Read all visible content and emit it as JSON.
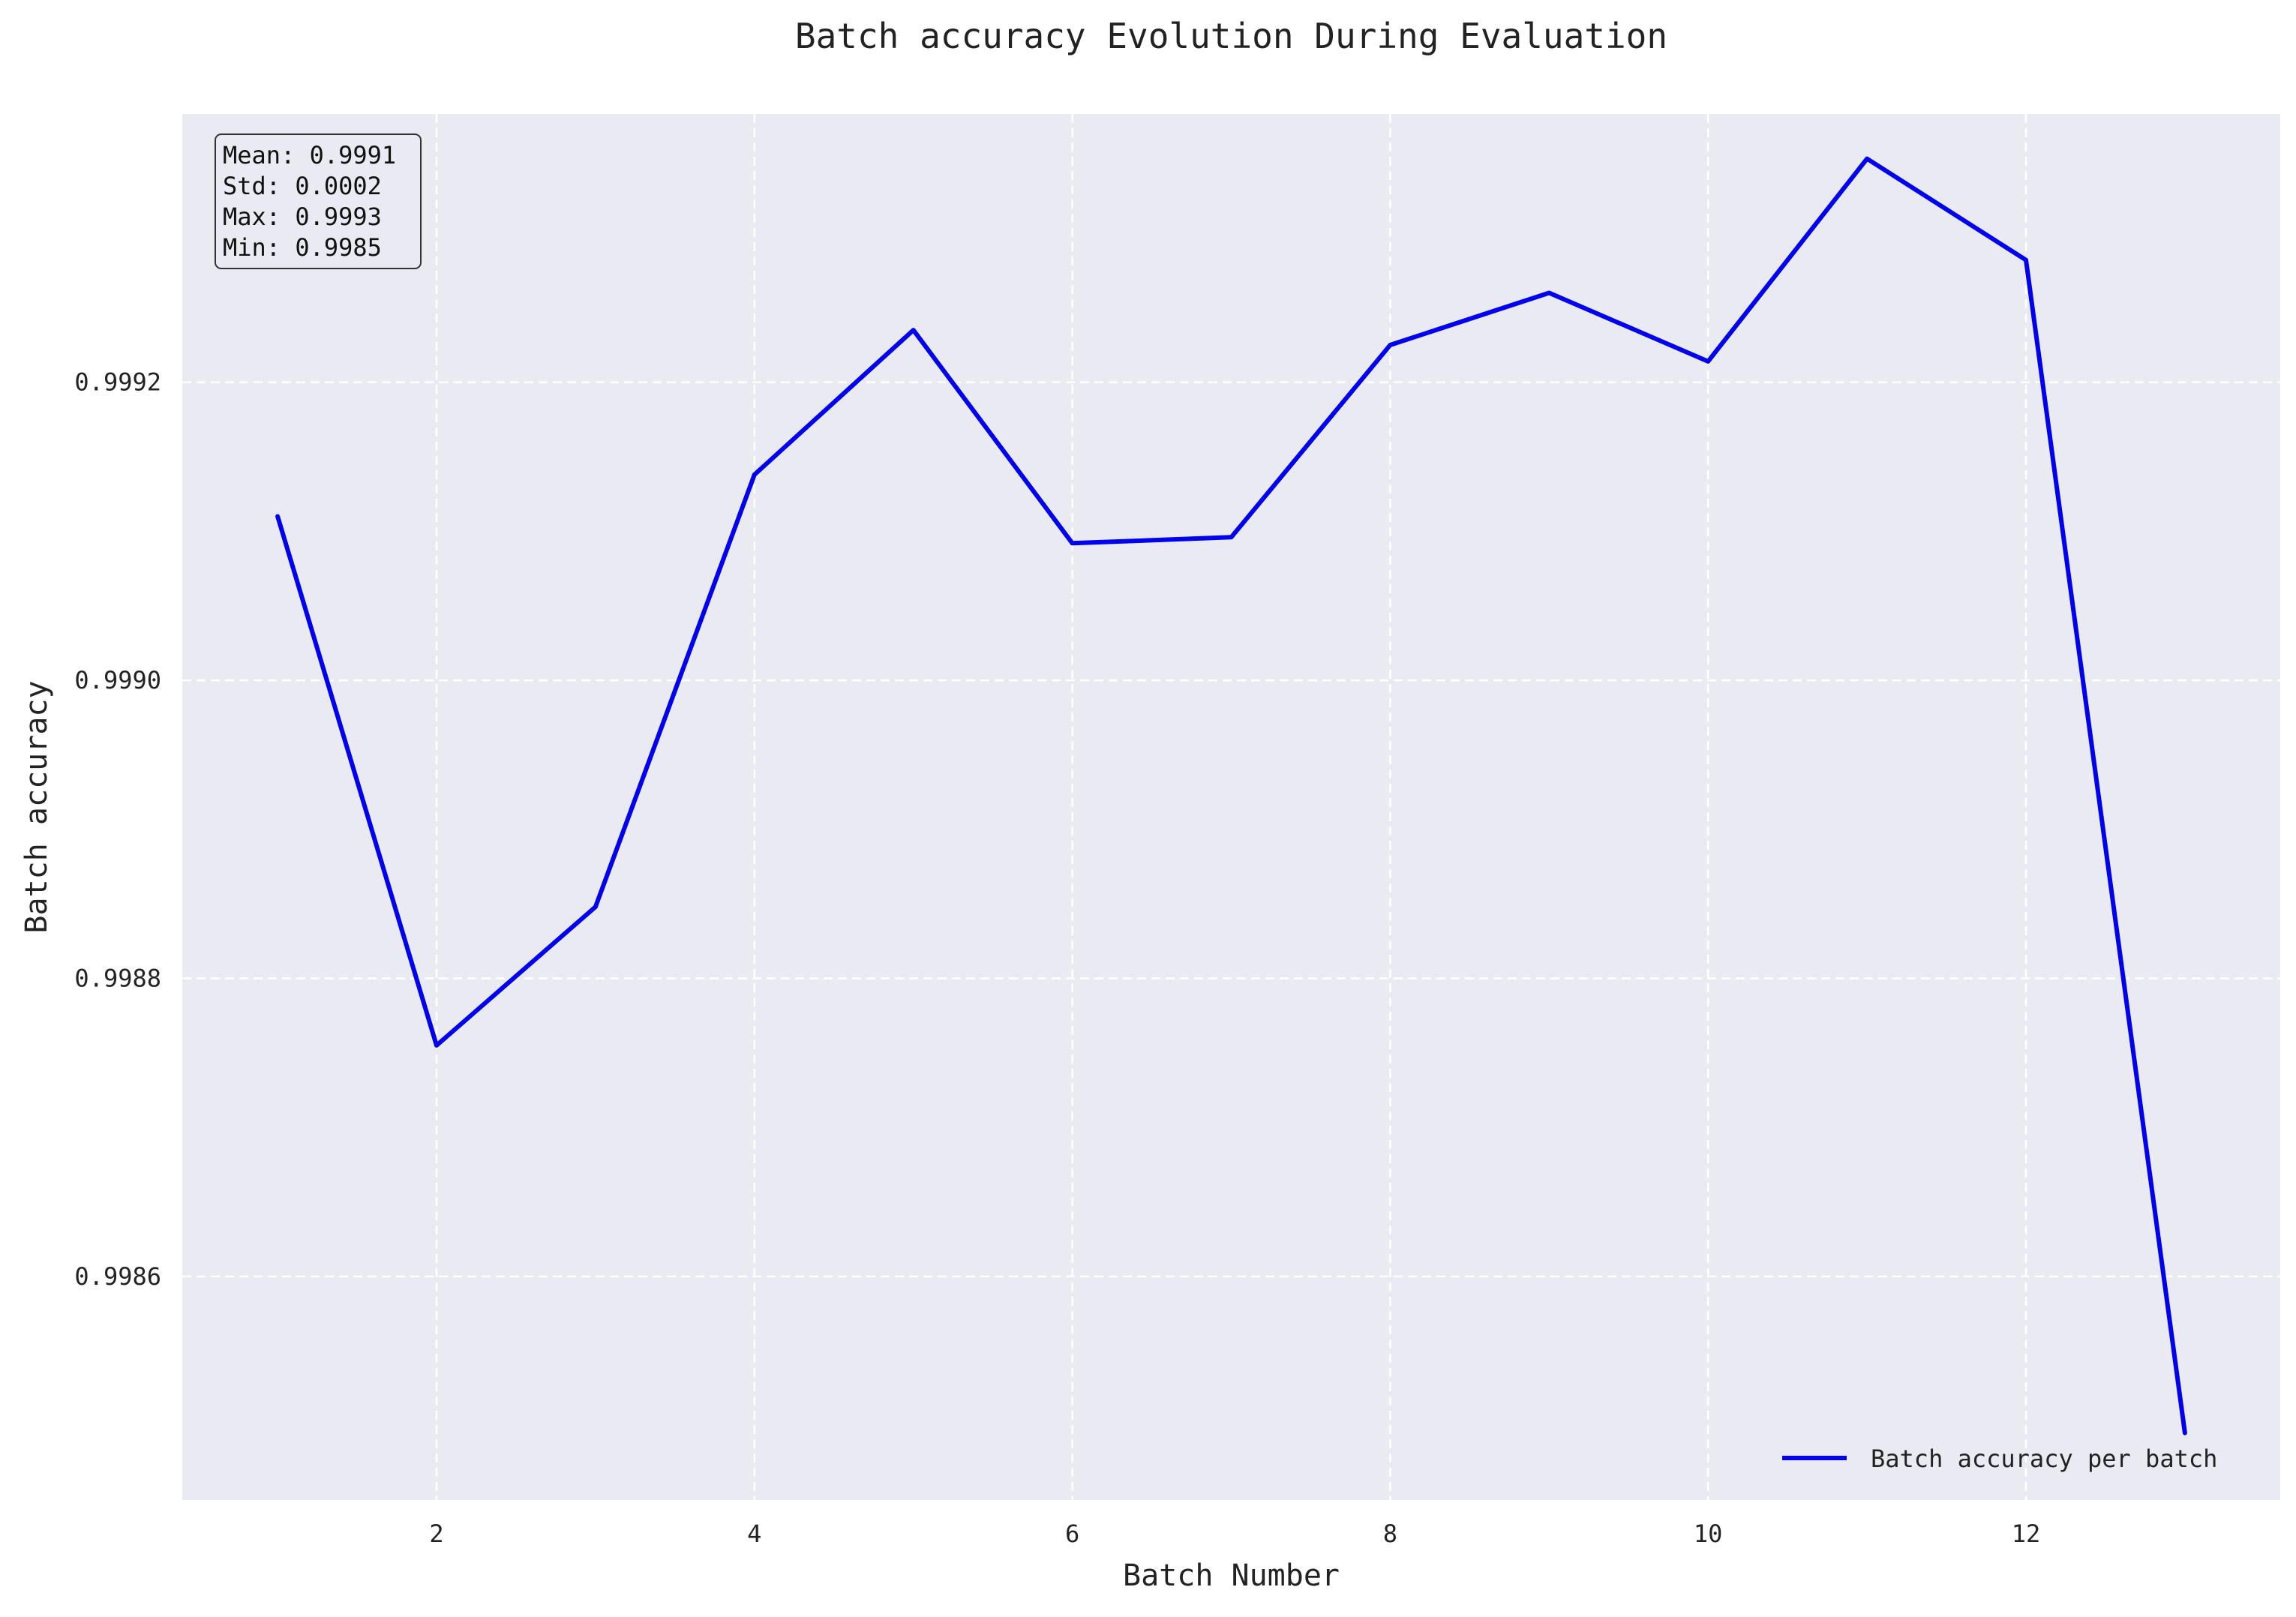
{
  "chart_data": {
    "type": "line",
    "title": "Batch accuracy Evolution During Evaluation",
    "xlabel": "Batch Number",
    "ylabel": "Batch accuracy",
    "xlim": [
      0.4,
      13.6
    ],
    "ylim": [
      0.99845,
      0.99938
    ],
    "xticks": [
      2,
      4,
      6,
      8,
      10,
      12
    ],
    "xtick_labels": [
      "2",
      "4",
      "6",
      "8",
      "10",
      "12"
    ],
    "yticks": [
      0.9986,
      0.9988,
      0.999,
      0.9992
    ],
    "ytick_labels": [
      "0.9986",
      "0.9988",
      "0.9990",
      "0.9992"
    ],
    "grid": true,
    "legend_position": "lower-right",
    "series": [
      {
        "name": "Batch accuracy per batch",
        "color": "#0000ee",
        "x": [
          1,
          2,
          3,
          4,
          5,
          6,
          7,
          8,
          9,
          10,
          11,
          12,
          13
        ],
        "values": [
          0.99911,
          0.998755,
          0.998848,
          0.999138,
          0.999235,
          0.999092,
          0.999096,
          0.999225,
          0.99926,
          0.999214,
          0.99935,
          0.999282,
          0.998495
        ]
      }
    ],
    "stats_box": {
      "position": "top-left",
      "lines": [
        "Mean: 0.9991",
        "Std: 0.0002",
        "Max: 0.9993",
        "Min: 0.9985"
      ]
    },
    "colors": {
      "plot_background": "#eaeaf2",
      "grid": "#ffffff",
      "line": "#0000ee"
    }
  }
}
